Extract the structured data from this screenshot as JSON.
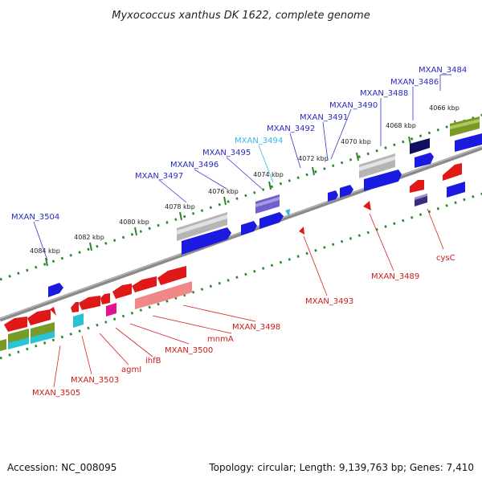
{
  "title": "Myxococcus xanthus DK 1622, complete genome",
  "accession": "Accession: NC_008095",
  "summary": "Topology: circular; Length: 9,139,763 bp; Genes: 7,410",
  "colors": {
    "backbone": "#808080",
    "tick_mark": "#2a8a2a",
    "forward_gene": "#1a1ae0",
    "reverse_gene": "#e01818",
    "pseudo_gray": "#b5b5b5",
    "olive": "#7a9a28",
    "cyan": "#29c4d4",
    "magenta": "#e0148c",
    "lavender": "#7060cc",
    "navy": "#101060",
    "pink": "#f08888",
    "top_label": "#2b2bbf",
    "bottom_label": "#cc1a1a",
    "highlight_label": "#33b8e6"
  },
  "ticks": [
    "4066 kbp",
    "4068 kbp",
    "4070 kbp",
    "4072 kbp",
    "4074 kbp",
    "4076 kbp",
    "4078 kbp",
    "4080 kbp",
    "4082 kbp",
    "4084 kbp"
  ],
  "top_labels": [
    "MXAN_3484",
    "MXAN_3486",
    "MXAN_3488",
    "MXAN_3490",
    "MXAN_3491",
    "MXAN_3492",
    "MXAN_3494",
    "MXAN_3495",
    "MXAN_3496",
    "MXAN_3497",
    "MXAN_3504"
  ],
  "bottom_labels": [
    "cysC",
    "MXAN_3489",
    "MXAN_3493",
    "MXAN_3498",
    "mnmA",
    "MXAN_3500",
    "ihfB",
    "agmI",
    "MXAN_3503",
    "MXAN_3505"
  ]
}
